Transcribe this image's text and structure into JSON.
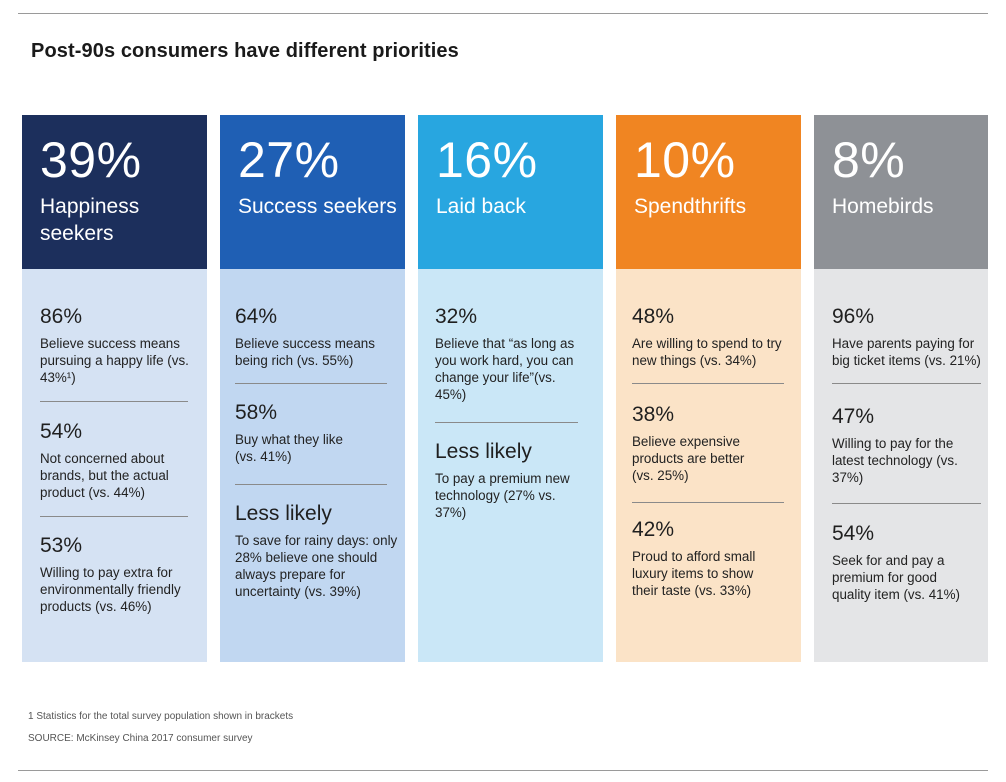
{
  "title": "Post-90s consumers have different priorities",
  "columns": [
    {
      "pct": "39%",
      "label": "Happiness seekers",
      "colors": {
        "head": "#1c2f5c",
        "body": "#d5e2f3"
      },
      "items": [
        {
          "num": "86%",
          "desc": "Believe success means pursuing a happy life (vs. 43%¹)"
        },
        {
          "num": "54%",
          "desc": "Not concerned about brands, but the actual product (vs. 44%)"
        },
        {
          "num": "53%",
          "desc": "Willing to pay extra for environmentally friendly products (vs. 46%)"
        }
      ]
    },
    {
      "pct": "27%",
      "label": "Success seekers",
      "colors": {
        "head": "#1f5fb4",
        "body": "#c1d7f1"
      },
      "items": [
        {
          "num": "64%",
          "desc": "Believe success means being rich (vs. 55%)"
        },
        {
          "num": "58%",
          "desc": "Buy what they like (vs. 41%)"
        },
        {
          "num": "Less likely",
          "desc": "To save for rainy days: only 28% believe one should always prepare for uncertainty (vs. 39%)"
        }
      ]
    },
    {
      "pct": "16%",
      "label": "Laid back",
      "colors": {
        "head": "#28a6e0",
        "body": "#cae7f7"
      },
      "items": [
        {
          "num": "32%",
          "desc": "Believe that “as long as you work hard, you can change your life”(vs. 45%)"
        },
        {
          "num": "Less likely",
          "desc": "To pay a premium new technology (27% vs. 37%)"
        }
      ]
    },
    {
      "pct": "10%",
      "label": "Spendthrifts",
      "colors": {
        "head": "#f08522",
        "body": "#fbe3c7"
      },
      "items": [
        {
          "num": "48%",
          "desc": "Are willing to spend to try new things (vs. 34%)"
        },
        {
          "num": "38%",
          "desc": "Believe expensive products are better (vs. 25%)"
        },
        {
          "num": "42%",
          "desc": "Proud to afford small luxury items to show their taste (vs. 33%)"
        }
      ]
    },
    {
      "pct": "8%",
      "label": "Homebirds",
      "colors": {
        "head": "#8e9196",
        "body": "#e4e5e7"
      },
      "items": [
        {
          "num": "96%",
          "desc": "Have parents paying for big ticket items (vs. 21%)"
        },
        {
          "num": "47%",
          "desc": "Willing to pay for the latest technology (vs. 37%)"
        },
        {
          "num": "54%",
          "desc": "Seek for and pay a premium for good quality item (vs. 41%)"
        }
      ]
    }
  ],
  "footnotes": {
    "note1": "1 Statistics for the total survey population shown in brackets",
    "source": "SOURCE: McKinsey China 2017 consumer survey"
  }
}
